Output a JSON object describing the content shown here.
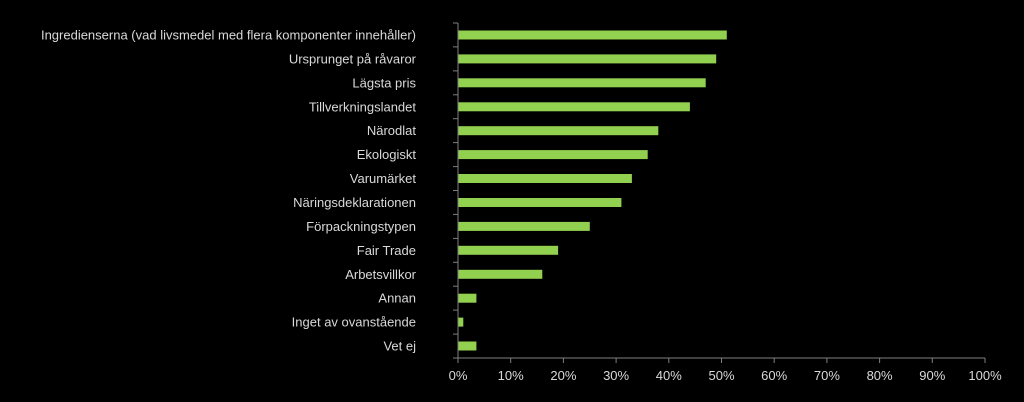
{
  "chart_data": {
    "type": "bar",
    "orientation": "horizontal",
    "categories": [
      "Ingredienserna (vad livsmedel med flera komponenter innehåller)",
      "Ursprunget på råvaror",
      "Lägsta pris",
      "Tillverkningslandet",
      "Närodlat",
      "Ekologiskt",
      "Varumärket",
      "Näringsdeklarationen",
      "Förpackningstypen",
      "Fair Trade",
      "Arbetsvillkor",
      "Annan",
      "Inget av ovanstående",
      "Vet ej"
    ],
    "values": [
      51,
      49,
      47,
      44,
      38,
      36,
      33,
      31,
      25,
      19,
      16,
      3.5,
      1,
      3.5
    ],
    "xlim": [
      0,
      100
    ],
    "xticks": [
      "0%",
      "10%",
      "20%",
      "30%",
      "40%",
      "50%",
      "60%",
      "70%",
      "80%",
      "90%",
      "100%"
    ],
    "title": "",
    "xlabel": "",
    "ylabel": "",
    "grid": false,
    "legend": "none",
    "colors": {
      "bar": "#92d050",
      "axis": "#7f7f7f",
      "text": "#d9d9d9",
      "background": "#000000"
    }
  }
}
